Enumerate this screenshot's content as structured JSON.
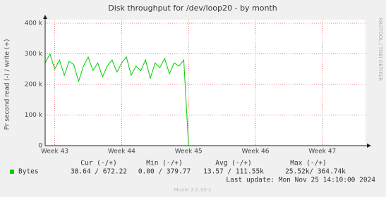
{
  "chart_data": {
    "type": "line",
    "title": "Disk throughput for /dev/loop20 - by month",
    "y_label": "Pr second read (-) / write (+)",
    "side_label": "RRDTOOL / TOBI OETIKER",
    "categories": [
      null,
      null,
      "Week 43",
      null,
      null,
      null,
      null,
      null,
      null,
      null,
      null,
      null,
      null,
      null,
      null,
      null,
      "Week 44",
      null,
      null,
      null,
      null,
      null,
      null,
      null,
      null,
      null,
      null,
      null,
      null,
      null,
      "Week 45",
      null,
      null,
      null,
      null,
      null,
      null,
      null,
      null,
      null,
      null,
      null,
      null,
      null,
      "Week 46",
      null,
      null,
      null,
      null,
      null,
      null,
      null,
      null,
      null,
      null,
      null,
      null,
      null,
      "Week 47",
      null,
      null,
      null,
      null,
      null,
      null,
      null,
      null
    ],
    "series": [
      {
        "name": "Bytes",
        "color": "#00cc00",
        "values": [
          270000,
          300000,
          250000,
          280000,
          230000,
          275000,
          265000,
          210000,
          260000,
          290000,
          245000,
          270000,
          225000,
          260000,
          280000,
          240000,
          270000,
          290000,
          230000,
          260000,
          245000,
          280000,
          220000,
          270000,
          255000,
          285000,
          235000,
          270000,
          260000,
          280000,
          0,
          0,
          0,
          0,
          0,
          0,
          0,
          0,
          0,
          0,
          0,
          0,
          0,
          0,
          0,
          0,
          0,
          0,
          0,
          0,
          0,
          0,
          0,
          0,
          0,
          0,
          0,
          0,
          0,
          0,
          0,
          0,
          0,
          0,
          0,
          0,
          0
        ]
      }
    ],
    "ylim": [
      0,
      400000
    ],
    "yticks": [
      0,
      {
        "value": 100000,
        "label": "100 k"
      },
      {
        "value": 200000,
        "label": "200 k"
      },
      {
        "value": 300000,
        "label": "300 k"
      },
      {
        "value": 400000,
        "label": "400 k"
      }
    ],
    "grid": true,
    "stats": {
      "headers": [
        "Cur (-/+)",
        "Min (-/+)",
        "Avg (-/+)",
        "Max (-/+)"
      ],
      "rows": [
        {
          "label": "Bytes",
          "values": [
            "38.64 / 672.22",
            "0.00 / 379.77",
            "13.57 / 111.55k",
            "25.52k/ 364.74k"
          ]
        }
      ]
    },
    "last_update": "Last update: Mon Nov 25 14:10:00 2024",
    "footer": "Munin 2.0.33-1"
  }
}
